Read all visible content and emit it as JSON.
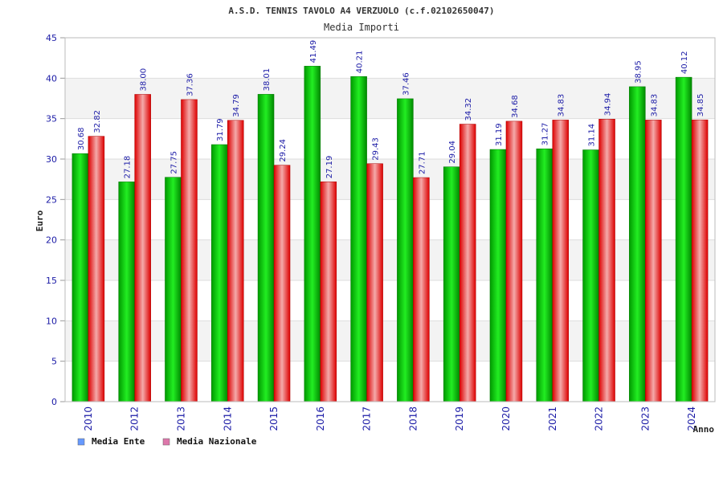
{
  "chart_data": {
    "type": "bar",
    "title": "A.S.D. TENNIS TAVOLO A4 VERZUOLO (c.f.02102650047)",
    "subtitle": "Media Importi",
    "xlabel": "Anno",
    "ylabel": "Euro",
    "ylim": [
      0,
      45
    ],
    "ytick_step": 5,
    "yticks": [
      "0",
      "5",
      "10",
      "15",
      "20",
      "25",
      "30",
      "35",
      "40",
      "45"
    ],
    "grid": true,
    "legend_position": "bottom-left",
    "categories": [
      "2010",
      "2012",
      "2013",
      "2014",
      "2015",
      "2016",
      "2017",
      "2018",
      "2019",
      "2020",
      "2021",
      "2022",
      "2023",
      "2024"
    ],
    "series": [
      {
        "name": "Media Ente",
        "color": "#00cc00",
        "legend_color": "#6699ff",
        "values": [
          30.68,
          27.18,
          27.75,
          31.79,
          38.01,
          41.49,
          40.21,
          37.46,
          29.04,
          31.19,
          31.27,
          31.14,
          38.95,
          40.12
        ],
        "labels": [
          "30.68",
          "27.18",
          "27.75",
          "31.79",
          "38.01",
          "41.49",
          "40.21",
          "37.46",
          "29.04",
          "31.19",
          "31.27",
          "31.14",
          "38.95",
          "40.12"
        ]
      },
      {
        "name": "Media Nazionale",
        "color": "#ee1111",
        "legend_color": "#dd77aa",
        "values": [
          32.82,
          38.0,
          37.36,
          34.79,
          29.24,
          27.19,
          29.43,
          27.71,
          34.32,
          34.68,
          34.83,
          34.94,
          34.83,
          34.85
        ],
        "labels": [
          "32.82",
          "38.00",
          "37.36",
          "34.79",
          "29.24",
          "27.19",
          "29.43",
          "27.71",
          "34.32",
          "34.68",
          "34.83",
          "34.94",
          "34.83",
          "34.85"
        ]
      }
    ]
  }
}
